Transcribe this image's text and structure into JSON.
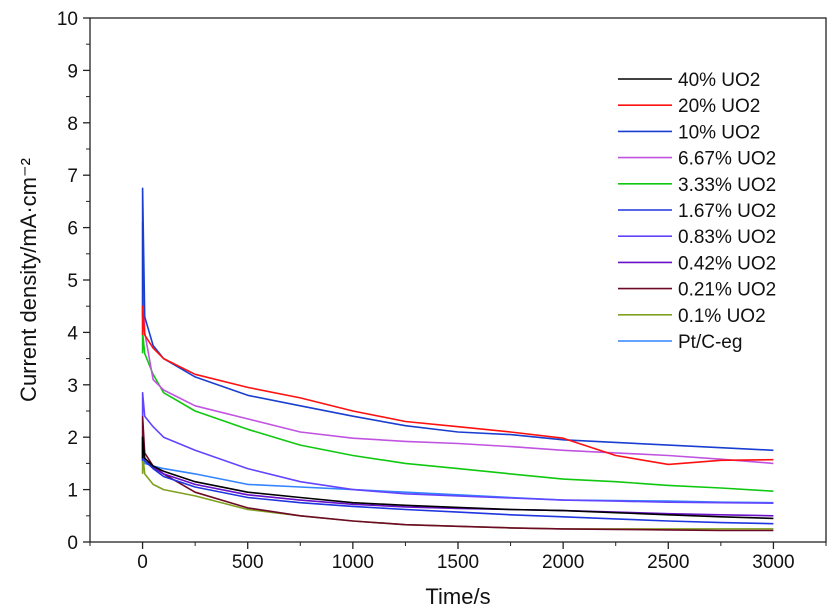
{
  "chart_data": {
    "type": "line",
    "title": "",
    "xlabel": "Time/s",
    "ylabel": "Current density/mA·cm⁻²",
    "xlim": [
      -250,
      3250
    ],
    "ylim": [
      0,
      10
    ],
    "xticks": [
      "0",
      "500",
      "1000",
      "1500",
      "2000",
      "2500",
      "3000"
    ],
    "yticks": [
      "0",
      "1",
      "2",
      "3",
      "4",
      "5",
      "6",
      "7",
      "8",
      "9",
      "10"
    ],
    "grid": false,
    "legend_position": "top-right",
    "x": [
      0,
      10,
      50,
      100,
      250,
      500,
      750,
      1000,
      1250,
      1500,
      1750,
      2000,
      2250,
      2500,
      2750,
      3000
    ],
    "series": [
      {
        "name": "40% UO2",
        "color": "#000000",
        "values": [
          2.0,
          1.6,
          1.45,
          1.35,
          1.15,
          0.95,
          0.85,
          0.75,
          0.7,
          0.66,
          0.62,
          0.6,
          0.56,
          0.52,
          0.48,
          0.45
        ]
      },
      {
        "name": "20% UO2",
        "color": "#ff1010",
        "values": [
          4.5,
          3.95,
          3.7,
          3.5,
          3.2,
          2.95,
          2.75,
          2.5,
          2.3,
          2.2,
          2.1,
          1.98,
          1.65,
          1.48,
          1.56,
          1.57
        ]
      },
      {
        "name": "10% UO2",
        "color": "#1a3fd0",
        "values": [
          6.75,
          4.3,
          3.75,
          3.5,
          3.15,
          2.8,
          2.6,
          2.4,
          2.22,
          2.1,
          2.05,
          1.95,
          1.9,
          1.85,
          1.8,
          1.75
        ]
      },
      {
        "name": "6.67% UO2",
        "color": "#c054e0",
        "values": [
          6.1,
          4.0,
          3.1,
          2.9,
          2.6,
          2.35,
          2.1,
          1.98,
          1.92,
          1.88,
          1.82,
          1.75,
          1.7,
          1.65,
          1.58,
          1.5
        ]
      },
      {
        "name": "3.33% UO2",
        "color": "#10c810",
        "values": [
          4.0,
          3.6,
          3.2,
          2.85,
          2.5,
          2.15,
          1.85,
          1.65,
          1.5,
          1.4,
          1.3,
          1.2,
          1.15,
          1.08,
          1.03,
          0.97
        ]
      },
      {
        "name": "1.67% UO2",
        "color": "#1f35e0",
        "values": [
          2.0,
          1.55,
          1.4,
          1.25,
          1.05,
          0.85,
          0.75,
          0.68,
          0.62,
          0.57,
          0.52,
          0.48,
          0.44,
          0.4,
          0.37,
          0.35
        ]
      },
      {
        "name": "0.83% UO2",
        "color": "#6445ff",
        "values": [
          2.85,
          2.4,
          2.2,
          2.0,
          1.75,
          1.4,
          1.15,
          1.0,
          0.92,
          0.88,
          0.84,
          0.8,
          0.78,
          0.76,
          0.75,
          0.74
        ]
      },
      {
        "name": "0.42% UO2",
        "color": "#6a10c8",
        "values": [
          1.9,
          1.55,
          1.42,
          1.3,
          1.1,
          0.9,
          0.8,
          0.72,
          0.67,
          0.64,
          0.62,
          0.6,
          0.57,
          0.54,
          0.52,
          0.5
        ]
      },
      {
        "name": "0.21% UO2",
        "color": "#6e0a28",
        "values": [
          2.4,
          1.7,
          1.45,
          1.3,
          0.95,
          0.65,
          0.5,
          0.4,
          0.33,
          0.3,
          0.27,
          0.25,
          0.24,
          0.23,
          0.22,
          0.22
        ]
      },
      {
        "name": "0.1% UO2",
        "color": "#7fa020",
        "values": [
          1.7,
          1.3,
          1.1,
          1.0,
          0.88,
          0.62,
          0.5,
          0.4,
          0.33,
          0.3,
          0.27,
          0.25,
          0.25,
          0.25,
          0.25,
          0.25
        ]
      },
      {
        "name": "Pt/C-eg",
        "color": "#3384ff",
        "values": [
          1.6,
          1.5,
          1.45,
          1.4,
          1.3,
          1.1,
          1.05,
          1.0,
          0.95,
          0.9,
          0.85,
          0.8,
          0.79,
          0.78,
          0.76,
          0.75
        ]
      }
    ]
  }
}
